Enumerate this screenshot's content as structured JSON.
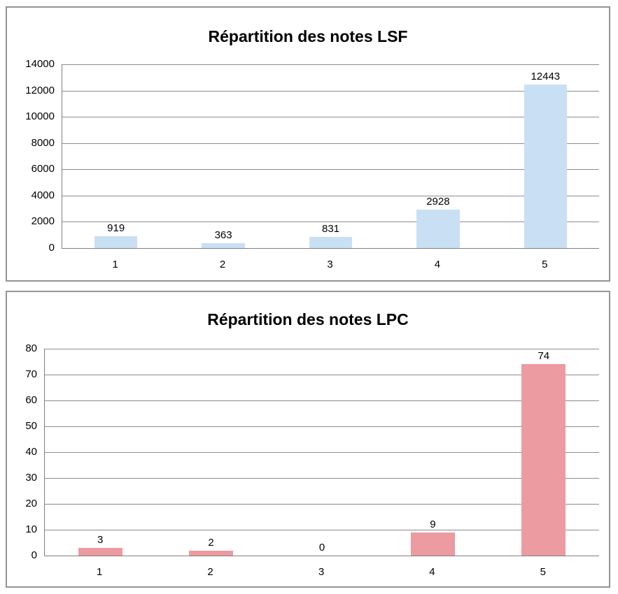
{
  "colors": {
    "lsf_bar": "#C9DFF4",
    "lpc_bar": "#EC9BA1",
    "gridline": "#8C8C8C",
    "axis": "#7F7F7F",
    "frame_border": "#949494",
    "text": "#000000",
    "background": "#FFFFFF"
  },
  "chart_data": [
    {
      "type": "bar",
      "title": "Répartition des notes LSF",
      "categories": [
        "1",
        "2",
        "3",
        "4",
        "5"
      ],
      "values": [
        919,
        363,
        831,
        2928,
        12443
      ],
      "value_labels": [
        "919",
        "363",
        "831",
        "2928",
        "12443"
      ],
      "xlabel": "",
      "ylabel": "",
      "ylim": [
        0,
        14000
      ],
      "y_ticks": [
        0,
        2000,
        4000,
        6000,
        8000,
        10000,
        12000,
        14000
      ],
      "grid": true,
      "legend": "none",
      "bar_color": "#C9DFF4"
    },
    {
      "type": "bar",
      "title": "Répartition des notes LPC",
      "categories": [
        "1",
        "2",
        "3",
        "4",
        "5"
      ],
      "values": [
        3,
        2,
        0,
        9,
        74
      ],
      "value_labels": [
        "3",
        "2",
        "0",
        "9",
        "74"
      ],
      "xlabel": "",
      "ylabel": "",
      "ylim": [
        0,
        80
      ],
      "y_ticks": [
        0,
        10,
        20,
        30,
        40,
        50,
        60,
        70,
        80
      ],
      "grid": true,
      "legend": "none",
      "bar_color": "#EC9BA1"
    }
  ]
}
